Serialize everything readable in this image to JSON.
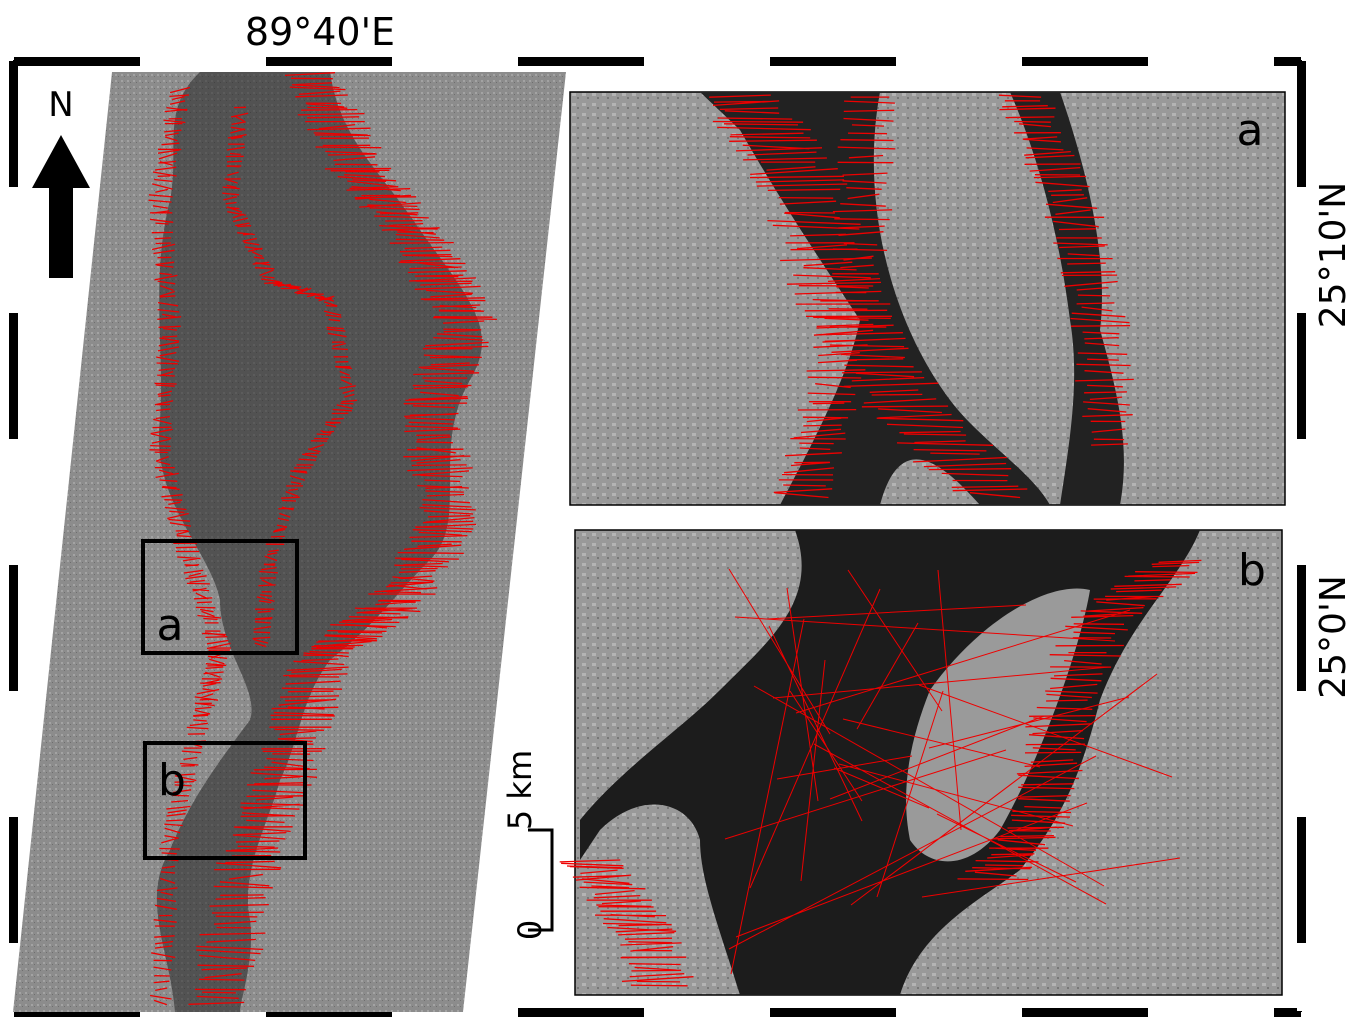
{
  "axis_labels": {
    "top": "89°40'E",
    "right": [
      "25°10'N",
      "25°0'N"
    ]
  },
  "north_arrow": {
    "label": "N"
  },
  "insets": [
    {
      "label": "a"
    },
    {
      "label": "b"
    }
  ],
  "scale_bar": {
    "labels": [
      "0",
      "5 km"
    ]
  }
}
